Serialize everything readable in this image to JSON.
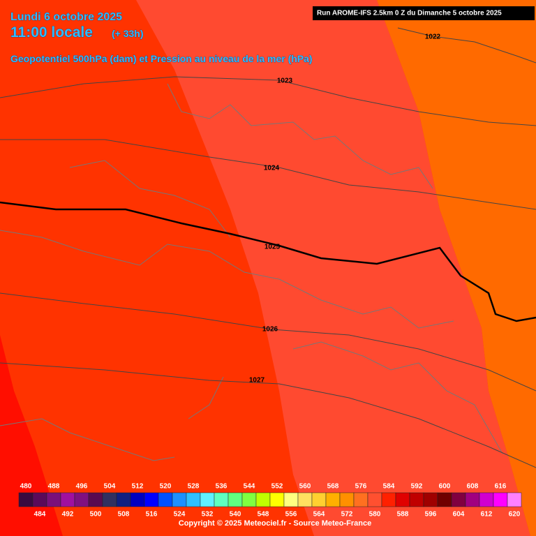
{
  "header": {
    "date": "Lundi 6 octobre 2025",
    "time": "11:00 locale",
    "lead": "(+ 33h)",
    "subtitle": "Geopotentiel 500hPa (dam) et Pression au niveau de la mer (hPa)",
    "run": "Run AROME-IFS 2.5km 0 Z du Dimanche 5 octobre 2025"
  },
  "isobars": [
    1022,
    1023,
    1024,
    1025,
    1026,
    1027
  ],
  "scale": {
    "labels": [
      480,
      484,
      488,
      492,
      496,
      500,
      504,
      508,
      512,
      516,
      520,
      524,
      528,
      532,
      536,
      540,
      544,
      548,
      552,
      556,
      560,
      564,
      568,
      572,
      576,
      580,
      584,
      588,
      592,
      596,
      600,
      604,
      608,
      612,
      616,
      620
    ],
    "colors": [
      "#3a0a40",
      "#5a0a5a",
      "#7a107a",
      "#a010a0",
      "#801080",
      "#5a0a50",
      "#303060",
      "#102080",
      "#0000c0",
      "#0000ff",
      "#0050ff",
      "#1e90ff",
      "#30c0ff",
      "#60f0ff",
      "#60ffc0",
      "#60ff80",
      "#80ff40",
      "#c0ff00",
      "#ffff00",
      "#ffff80",
      "#ffe060",
      "#ffd030",
      "#ffb000",
      "#ff9000",
      "#ff7020",
      "#ff5030",
      "#ff2000",
      "#e00000",
      "#c00000",
      "#a00000",
      "#700000",
      "#800040",
      "#a00080",
      "#d000d0",
      "#ff00ff",
      "#ff80ff"
    ]
  },
  "footer": {
    "copyright": "Copyright © 2025 Meteociel.fr - Source Meteo-France"
  }
}
